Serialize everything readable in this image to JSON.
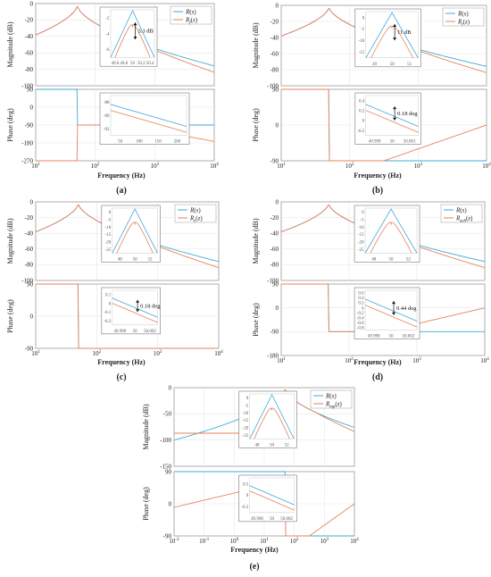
{
  "colors": {
    "continuous": "#3fa9d6",
    "discrete": "#e8825a",
    "arrow": "#111111"
  },
  "chart_data": [
    {
      "id": "a",
      "caption": "(a)",
      "type": "line",
      "xlabel": "Frequency (Hz)",
      "xscale": "log",
      "xlim": [
        10,
        10000
      ],
      "xticks": [
        "10^1",
        "10^2",
        "10^3",
        "10^4"
      ],
      "legend": [
        "R(s)",
        "R_f(z)"
      ],
      "legend_position": "top-right",
      "magnitude": {
        "ylabel": "Magnitude (dB)",
        "ylim": [
          -100,
          0
        ],
        "yticks": [
          "0",
          "-20",
          "-40",
          "-60",
          "-80",
          "-100"
        ]
      },
      "phase": {
        "ylabel": "Phase (deg)",
        "ylim": [
          -270,
          90
        ],
        "yticks": [
          "90",
          "0",
          "-90",
          "-180",
          "-270"
        ]
      },
      "series_note": "resonant peak at 50 Hz",
      "mag_inset": {
        "xticks": [
          "49.6",
          "49.8",
          "50",
          "50.2",
          "50.4"
        ],
        "yticks": [
          "-2",
          "-4",
          "-6"
        ],
        "annotation": "3.3 dB"
      },
      "phase_inset": {
        "xticks": [
          "50",
          "100",
          "150",
          "200"
        ],
        "yticks": [
          "-88",
          "-90",
          "-92"
        ]
      }
    },
    {
      "id": "b",
      "caption": "(b)",
      "type": "line",
      "xlabel": "Frequency (Hz)",
      "xscale": "log",
      "xlim": [
        10,
        10000
      ],
      "xticks": [
        "10^1",
        "10^2",
        "10^3",
        "10^4"
      ],
      "legend": [
        "R(s)",
        "R_t(z)"
      ],
      "legend_position": "top-right",
      "magnitude": {
        "ylabel": "Magnitude (dB)",
        "ylim": [
          -100,
          0
        ],
        "yticks": [
          "0",
          "-20",
          "-40",
          "-60",
          "-80",
          "-100"
        ]
      },
      "phase": {
        "ylabel": "Phase (deg)",
        "ylim": [
          -90,
          90
        ],
        "yticks": [
          "90",
          "0",
          "-90"
        ]
      },
      "mag_inset": {
        "xticks": [
          "49",
          "50",
          "51"
        ],
        "yticks": [
          "0",
          "-5",
          "-10",
          "-15"
        ],
        "annotation": "11 dB"
      },
      "phase_inset": {
        "xticks": [
          "49.999",
          "50",
          "50.001"
        ],
        "yticks": [
          "0.4",
          "0.2",
          "0",
          "-0.2"
        ],
        "annotation": "0.18 deg"
      }
    },
    {
      "id": "c",
      "caption": "(c)",
      "type": "line",
      "xlabel": "Frequency (Hz)",
      "xscale": "log",
      "xlim": [
        10,
        10000
      ],
      "xticks": [
        "10^1",
        "10^2",
        "10^3",
        "10^4"
      ],
      "legend": [
        "R(s)",
        "R_z(z)"
      ],
      "legend_position": "top-right",
      "magnitude": {
        "ylabel": "Magnitude (dB)",
        "ylim": [
          -100,
          0
        ],
        "yticks": [
          "0",
          "-20",
          "-40",
          "-60",
          "-80",
          "-100"
        ]
      },
      "phase": {
        "ylabel": "Phase (deg)",
        "ylim": [
          -90,
          90
        ],
        "yticks": [
          "90",
          "0",
          "-90"
        ]
      },
      "mag_inset": {
        "xticks": [
          "48",
          "50",
          "52"
        ],
        "yticks": [
          "0",
          "-5",
          "-10",
          "-15",
          "-20",
          "-25"
        ]
      },
      "phase_inset": {
        "xticks": [
          "49.998",
          "50",
          "50.002"
        ],
        "yticks": [
          "0.1",
          "0",
          "-0.1",
          "-0.2"
        ],
        "annotation": "0.18 deg"
      }
    },
    {
      "id": "d",
      "caption": "(d)",
      "type": "line",
      "xlabel": "Frequency (Hz)",
      "xscale": "log",
      "xlim": [
        10,
        10000
      ],
      "xticks": [
        "10^1",
        "10^2",
        "10^3",
        "10^4"
      ],
      "legend": [
        "R(s)",
        "R_zeh(z)"
      ],
      "legend_position": "top-right",
      "magnitude": {
        "ylabel": "Magnitude (dB)",
        "ylim": [
          -100,
          0
        ],
        "yticks": [
          "0",
          "-20",
          "-40",
          "-60",
          "-80",
          "-100"
        ]
      },
      "phase": {
        "ylabel": "Phase (deg)",
        "ylim": [
          -180,
          90
        ],
        "yticks": [
          "90",
          "0",
          "-90",
          "-180"
        ]
      },
      "mag_inset": {
        "xticks": [
          "48",
          "50",
          "52"
        ],
        "yticks": [
          "0",
          "-5",
          "-10",
          "-15",
          "-20",
          "-25"
        ]
      },
      "phase_inset": {
        "xticks": [
          "49.998",
          "50",
          "50.002"
        ],
        "yticks": [
          "0.6",
          "0.4",
          "0.2",
          "0",
          "-0.2",
          "-0.4",
          "-0.6",
          "-0.8"
        ],
        "annotation": "0.44 deg"
      }
    },
    {
      "id": "e",
      "caption": "(e)",
      "type": "line",
      "xlabel": "Frequency (Hz)",
      "xscale": "log",
      "xlim": [
        0.01,
        10000
      ],
      "xticks": [
        "10^-2",
        "10^-1",
        "10^0",
        "10^1",
        "10^2",
        "10^3",
        "10^4"
      ],
      "legend": [
        "R(s)",
        "R_mp(z)"
      ],
      "legend_position": "top-right",
      "magnitude": {
        "ylabel": "Magnitude (dB)",
        "ylim": [
          -150,
          0
        ],
        "yticks": [
          "0",
          "-50",
          "-100",
          "-150"
        ]
      },
      "phase": {
        "ylabel": "Phase (deg)",
        "ylim": [
          -90,
          90
        ],
        "yticks": [
          "90",
          "0",
          "-90"
        ]
      },
      "mag_inset": {
        "xticks": [
          "48",
          "50",
          "52"
        ],
        "yticks": [
          "0",
          "-5",
          "-10",
          "-15",
          "-20",
          "-25"
        ]
      },
      "phase_inset": {
        "xticks": [
          "49.998",
          "50",
          "50.002"
        ],
        "yticks": [
          "0.5",
          "0",
          "-0.5"
        ]
      }
    }
  ]
}
